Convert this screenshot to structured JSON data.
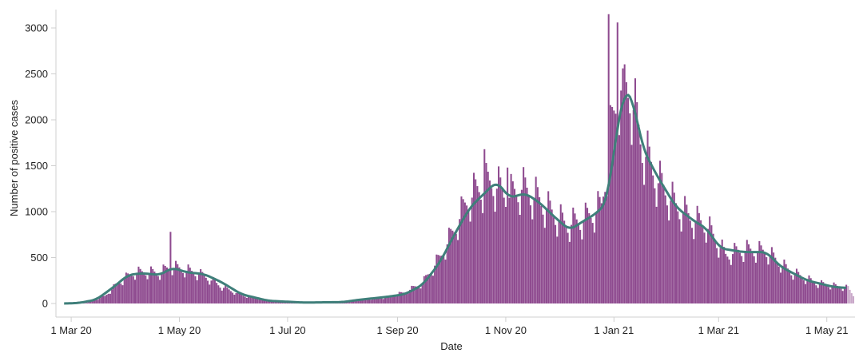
{
  "chart_data": {
    "type": "bar",
    "title": "",
    "xlabel": "Date",
    "ylabel": "Number of positive cases",
    "ylim": [
      0,
      3200
    ],
    "xlim": [
      "2020-02-25",
      "2021-05-16"
    ],
    "y_ticks": [
      0,
      500,
      1000,
      1500,
      2000,
      2500,
      3000
    ],
    "x_ticks": [
      {
        "date": "2020-03-01",
        "label": "1 Mar 20"
      },
      {
        "date": "2020-05-01",
        "label": "1 May 20"
      },
      {
        "date": "2020-07-01",
        "label": "1 Jul 20"
      },
      {
        "date": "2020-09-01",
        "label": "1 Sep 20"
      },
      {
        "date": "2020-11-01",
        "label": "1 Nov 20"
      },
      {
        "date": "2021-01-01",
        "label": "1 Jan 21"
      },
      {
        "date": "2021-03-01",
        "label": "1 Mar 21"
      },
      {
        "date": "2021-05-01",
        "label": "1 May 21"
      }
    ],
    "grid": false,
    "legend": "none",
    "colors": {
      "bars": "#8e4a8f",
      "provisional_bars": "#c9a8c9",
      "trend": "#3f7f7a"
    },
    "series": [
      {
        "kind": "daily",
        "points": [
          [
            "2020-02-26",
            0
          ],
          [
            "2020-03-10",
            8
          ],
          [
            "2020-03-20",
            80
          ],
          [
            "2020-03-28",
            230
          ],
          [
            "2020-04-05",
            330
          ],
          [
            "2020-04-12",
            340
          ],
          [
            "2020-04-20",
            330
          ],
          [
            "2020-04-26",
            400
          ],
          [
            "2020-05-05",
            360
          ],
          [
            "2020-05-15",
            300
          ],
          [
            "2020-05-25",
            180
          ],
          [
            "2020-06-05",
            90
          ],
          [
            "2020-06-20",
            35
          ],
          [
            "2020-07-10",
            15
          ],
          [
            "2020-08-01",
            20
          ],
          [
            "2020-08-10",
            40
          ],
          [
            "2020-08-25",
            65
          ],
          [
            "2020-09-05",
            120
          ],
          [
            "2020-09-15",
            220
          ],
          [
            "2020-09-25",
            500
          ],
          [
            "2020-10-03",
            800
          ],
          [
            "2020-10-10",
            1100
          ],
          [
            "2020-10-17",
            1250
          ],
          [
            "2020-10-25",
            1300
          ],
          [
            "2020-11-02",
            1150
          ],
          [
            "2020-11-10",
            1250
          ],
          [
            "2020-11-18",
            1150
          ],
          [
            "2020-11-26",
            1000
          ],
          [
            "2020-12-05",
            850
          ],
          [
            "2020-12-15",
            900
          ],
          [
            "2020-12-25",
            1050
          ],
          [
            "2020-12-30",
            1800
          ],
          [
            "2021-01-04",
            2350
          ],
          [
            "2021-01-10",
            2300
          ],
          [
            "2021-01-17",
            1700
          ],
          [
            "2021-01-25",
            1350
          ],
          [
            "2021-02-05",
            1050
          ],
          [
            "2021-02-15",
            900
          ],
          [
            "2021-02-22",
            850
          ],
          [
            "2021-03-05",
            520
          ],
          [
            "2021-03-15",
            580
          ],
          [
            "2021-03-28",
            560
          ],
          [
            "2021-04-10",
            350
          ],
          [
            "2021-04-25",
            220
          ],
          [
            "2021-05-12",
            170
          ]
        ],
        "spikes": [
          [
            "2020-04-26",
            780
          ],
          [
            "2020-12-29",
            3150
          ],
          [
            "2021-01-03",
            3060
          ],
          [
            "2021-01-06",
            2560
          ],
          [
            "2020-10-20",
            1680
          ],
          [
            "2020-11-02",
            1480
          ]
        ],
        "provisional_from": "2021-05-13"
      },
      {
        "kind": "trend",
        "points": [
          [
            "2020-02-26",
            0
          ],
          [
            "2020-03-05",
            5
          ],
          [
            "2020-03-15",
            40
          ],
          [
            "2020-03-25",
            180
          ],
          [
            "2020-04-02",
            310
          ],
          [
            "2020-04-10",
            330
          ],
          [
            "2020-04-20",
            310
          ],
          [
            "2020-04-27",
            390
          ],
          [
            "2020-05-05",
            340
          ],
          [
            "2020-05-15",
            320
          ],
          [
            "2020-05-25",
            230
          ],
          [
            "2020-06-05",
            100
          ],
          [
            "2020-06-20",
            30
          ],
          [
            "2020-07-10",
            10
          ],
          [
            "2020-08-01",
            15
          ],
          [
            "2020-08-10",
            40
          ],
          [
            "2020-08-25",
            70
          ],
          [
            "2020-09-05",
            100
          ],
          [
            "2020-09-15",
            200
          ],
          [
            "2020-09-25",
            450
          ],
          [
            "2020-10-03",
            750
          ],
          [
            "2020-10-12",
            1050
          ],
          [
            "2020-10-20",
            1200
          ],
          [
            "2020-10-27",
            1330
          ],
          [
            "2020-11-03",
            1150
          ],
          [
            "2020-11-12",
            1200
          ],
          [
            "2020-11-20",
            1100
          ],
          [
            "2020-11-28",
            950
          ],
          [
            "2020-12-07",
            800
          ],
          [
            "2020-12-15",
            900
          ],
          [
            "2020-12-22",
            980
          ],
          [
            "2020-12-28",
            1100
          ],
          [
            "2021-01-02",
            1800
          ],
          [
            "2021-01-07",
            2350
          ],
          [
            "2021-01-12",
            2200
          ],
          [
            "2021-01-17",
            1700
          ],
          [
            "2021-01-25",
            1400
          ],
          [
            "2021-02-05",
            1050
          ],
          [
            "2021-02-15",
            900
          ],
          [
            "2021-02-22",
            820
          ],
          [
            "2021-03-02",
            600
          ],
          [
            "2021-03-15",
            560
          ],
          [
            "2021-03-28",
            560
          ],
          [
            "2021-04-05",
            400
          ],
          [
            "2021-04-20",
            250
          ],
          [
            "2021-05-05",
            180
          ],
          [
            "2021-05-12",
            170
          ]
        ]
      }
    ]
  }
}
